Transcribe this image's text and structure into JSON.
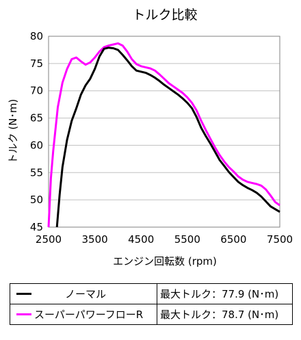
{
  "chart_data": {
    "type": "line",
    "title": "トルク比較",
    "xlabel": "エンジン回転数 (rpm)",
    "ylabel": "トルク (N･m)",
    "xlim": [
      2500,
      7500
    ],
    "ylim": [
      45,
      80
    ],
    "xticks": [
      2500,
      3500,
      4500,
      5500,
      6500,
      7500
    ],
    "yticks": [
      45,
      50,
      55,
      60,
      65,
      70,
      75,
      80
    ],
    "grid": "horizontal",
    "series": [
      {
        "name": "ノーマル",
        "color": "#000000",
        "max_label": "最大トルク：77.9 (N･m)",
        "x": [
          2680,
          2740,
          2800,
          2900,
          3000,
          3100,
          3200,
          3300,
          3400,
          3500,
          3600,
          3700,
          3800,
          3900,
          4000,
          4100,
          4200,
          4300,
          4400,
          4500,
          4600,
          4700,
          4800,
          4900,
          5000,
          5100,
          5200,
          5300,
          5400,
          5500,
          5600,
          5700,
          5800,
          5900,
          6000,
          6100,
          6200,
          6300,
          6400,
          6500,
          6600,
          6700,
          6800,
          6900,
          7000,
          7100,
          7200,
          7300,
          7400,
          7500
        ],
        "y": [
          45,
          51,
          56,
          61,
          64.5,
          66.8,
          69.3,
          71,
          72.2,
          74,
          76.3,
          77.7,
          77.9,
          77.8,
          77.5,
          76.6,
          75.6,
          74.5,
          73.7,
          73.5,
          73.3,
          72.9,
          72.4,
          71.8,
          71.1,
          70.5,
          69.9,
          69.3,
          68.6,
          67.8,
          66.8,
          65.2,
          63.2,
          61.7,
          60.3,
          58.8,
          57.3,
          56.2,
          55.1,
          54.2,
          53.3,
          52.7,
          52.2,
          51.8,
          51.3,
          50.6,
          49.7,
          48.8,
          48.3,
          47.8
        ]
      },
      {
        "name": "スーパーパワーフローR",
        "color": "#ff00ff",
        "max_label": "最大トルク：78.7 (N･m)",
        "x": [
          2500,
          2550,
          2600,
          2700,
          2800,
          2900,
          3000,
          3100,
          3200,
          3300,
          3400,
          3500,
          3600,
          3700,
          3800,
          3900,
          4000,
          4100,
          4200,
          4300,
          4400,
          4500,
          4600,
          4700,
          4800,
          4900,
          5000,
          5100,
          5200,
          5300,
          5400,
          5500,
          5600,
          5700,
          5800,
          5900,
          6000,
          6100,
          6200,
          6300,
          6400,
          6500,
          6600,
          6700,
          6800,
          6900,
          7000,
          7100,
          7200,
          7300,
          7400,
          7500
        ],
        "y": [
          45,
          54,
          59,
          67,
          71.5,
          74,
          75.8,
          76.1,
          75.4,
          74.8,
          75.2,
          76.1,
          77.2,
          78,
          78.3,
          78.5,
          78.7,
          78.3,
          77.2,
          75.8,
          74.9,
          74.5,
          74.3,
          74.1,
          73.7,
          73,
          72.2,
          71.4,
          70.8,
          70.2,
          69.6,
          68.8,
          67.8,
          66.4,
          64.5,
          62.8,
          61.2,
          59.6,
          58.2,
          57,
          56,
          55.2,
          54.3,
          53.7,
          53.3,
          53.1,
          52.9,
          52.6,
          51.9,
          50.8,
          49.6,
          49
        ]
      }
    ]
  }
}
